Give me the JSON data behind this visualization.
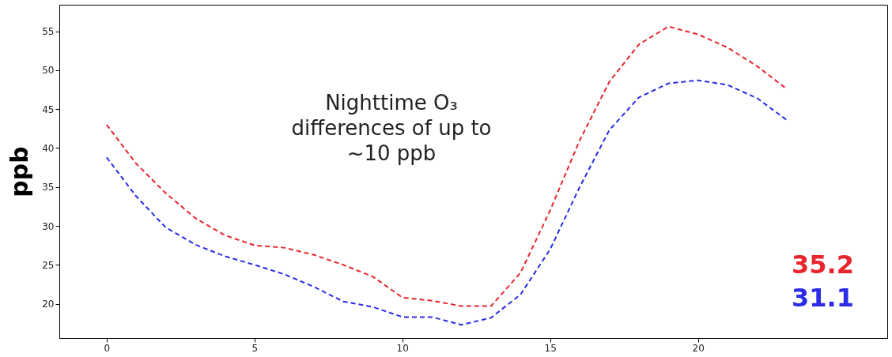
{
  "chart_data": {
    "type": "line",
    "ylabel": "ppb",
    "x": [
      0,
      1,
      2,
      3,
      4,
      5,
      6,
      7,
      8,
      9,
      10,
      11,
      12,
      13,
      14,
      15,
      16,
      17,
      18,
      19,
      20,
      21,
      22,
      23
    ],
    "series": [
      {
        "color": "#e8242c",
        "values": [
          43,
          38,
          34.2,
          31,
          28.8,
          27.5,
          27.2,
          26.3,
          25,
          23.5,
          20.8,
          20.4,
          19.7,
          19.7,
          24,
          32,
          41,
          48.5,
          53.3,
          55.6,
          54.6,
          52.9,
          50.5,
          47.6
        ]
      },
      {
        "color": "#2b2be8",
        "values": [
          38.8,
          33.8,
          29.8,
          27.6,
          26.1,
          25,
          23.8,
          22.2,
          20.3,
          19.6,
          18.3,
          18.3,
          17.3,
          18.2,
          21.2,
          27,
          35,
          42.3,
          46.5,
          48.3,
          48.7,
          48.1,
          46.4,
          43.6
        ]
      }
    ],
    "xlim": [
      -1.6,
      26.4
    ],
    "ylim": [
      15.6,
      58.4
    ],
    "xticks": [
      0,
      5,
      10,
      15,
      20
    ],
    "yticks": [
      20,
      25,
      30,
      35,
      40,
      45,
      50,
      55
    ],
    "line_style": "dashed",
    "marker": "none",
    "grid": false,
    "legend": false,
    "annotations": [
      "Nighttime O₃ differences of up to ~10 ppb",
      "35.2",
      "31.1"
    ]
  }
}
